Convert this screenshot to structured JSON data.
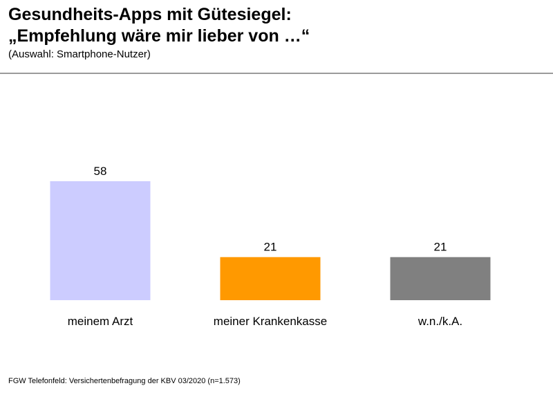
{
  "header": {
    "title_line1": "Gesundheits-Apps mit Gütesiegel:",
    "title_line2": "„Empfehlung wäre mir lieber von …“",
    "subtitle": "(Auswahl: Smartphone-Nutzer)"
  },
  "chart_data": {
    "type": "bar",
    "title": "Gesundheits-Apps mit Gütesiegel: „Empfehlung wäre mir lieber von …“",
    "subtitle": "(Auswahl: Smartphone-Nutzer)",
    "categories": [
      "meinem Arzt",
      "meiner Krankenkasse",
      "w.n./k.A."
    ],
    "values": [
      58,
      21,
      21
    ],
    "colors": [
      "#ccccff",
      "#ff9900",
      "#808080"
    ],
    "xlabel": "",
    "ylabel": "",
    "ylim": [
      0,
      58
    ],
    "grid": false,
    "legend": "none"
  },
  "footer": {
    "source": "FGW Telefonfeld: Versichertenbefragung der KBV 03/2020 (n=1.573)"
  }
}
